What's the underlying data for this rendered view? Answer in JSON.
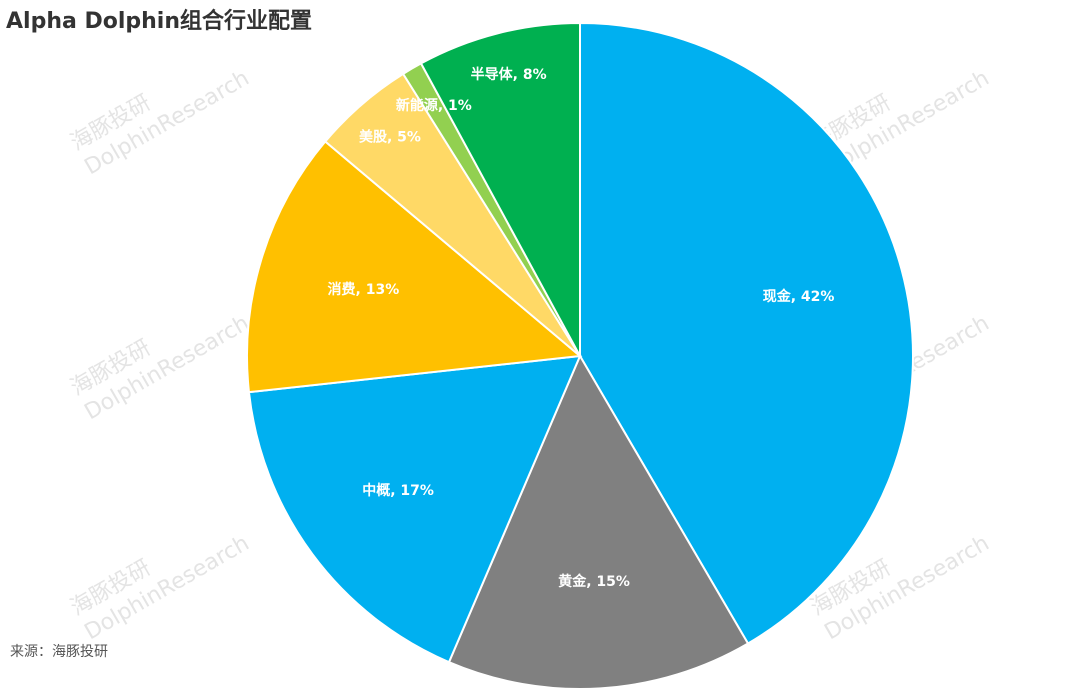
{
  "chart_data": {
    "type": "pie",
    "title": "Alpha Dolphin组合行业配置",
    "categories": [
      "现金",
      "黄金",
      "中概",
      "消费",
      "美股",
      "新能源",
      "半导体"
    ],
    "values": [
      42,
      15,
      17,
      13,
      5,
      1,
      8
    ],
    "value_labels": [
      "现金, 42%",
      "黄金, 15%",
      "中概, 17%",
      "消费, 13%",
      "美股, 5%",
      "新能源, 1%",
      "半导体, 8%"
    ],
    "colors": [
      "#00b0f0",
      "#808080",
      "#00b0f0",
      "#ffc000",
      "#ffd966",
      "#92d050",
      "#00b050"
    ],
    "source": "来源：海豚投研",
    "watermark": [
      "海豚投研",
      "DolphinResearch"
    ]
  }
}
